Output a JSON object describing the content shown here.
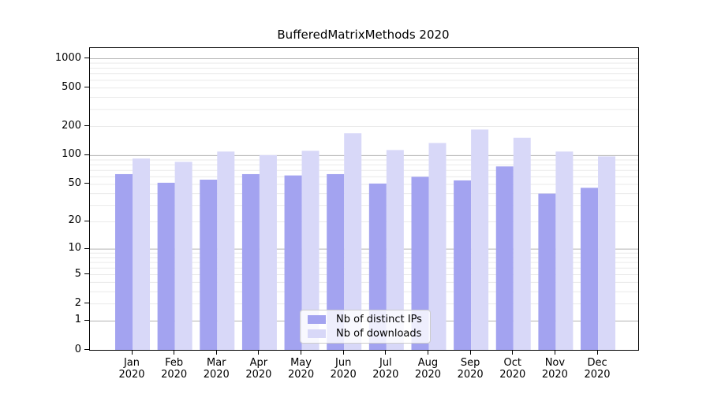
{
  "title": "BufferedMatrixMethods 2020",
  "colors": {
    "ips_bar": "#a3a3f0",
    "downloads_bar": "#d8d8f8",
    "grid_major": "#b3b3b3",
    "grid_minor": "#eaeaea",
    "axis": "#000000",
    "legend_border": "#cccccc"
  },
  "chart_data": {
    "type": "bar",
    "title": "BufferedMatrixMethods 2020",
    "categories": [
      "Jan 2020",
      "Feb 2020",
      "Mar 2020",
      "Apr 2020",
      "May 2020",
      "Jun 2020",
      "Jul 2020",
      "Aug 2020",
      "Sep 2020",
      "Oct 2020",
      "Nov 2020",
      "Dec 2020"
    ],
    "series": [
      {
        "name": "Nb of distinct IPs",
        "values": [
          64,
          52,
          56,
          64,
          62,
          64,
          51,
          60,
          55,
          77,
          40,
          46
        ]
      },
      {
        "name": "Nb of downloads",
        "values": [
          93,
          86,
          110,
          101,
          112,
          170,
          114,
          135,
          186,
          153,
          110,
          98
        ]
      }
    ],
    "xlabel": "",
    "ylabel": "",
    "y_ticks": [
      0,
      1,
      2,
      5,
      10,
      20,
      50,
      100,
      200,
      500,
      1000
    ],
    "y_scale": "log1p",
    "ylim": [
      0,
      1300
    ],
    "grid": true,
    "legend_position": "lower center"
  }
}
